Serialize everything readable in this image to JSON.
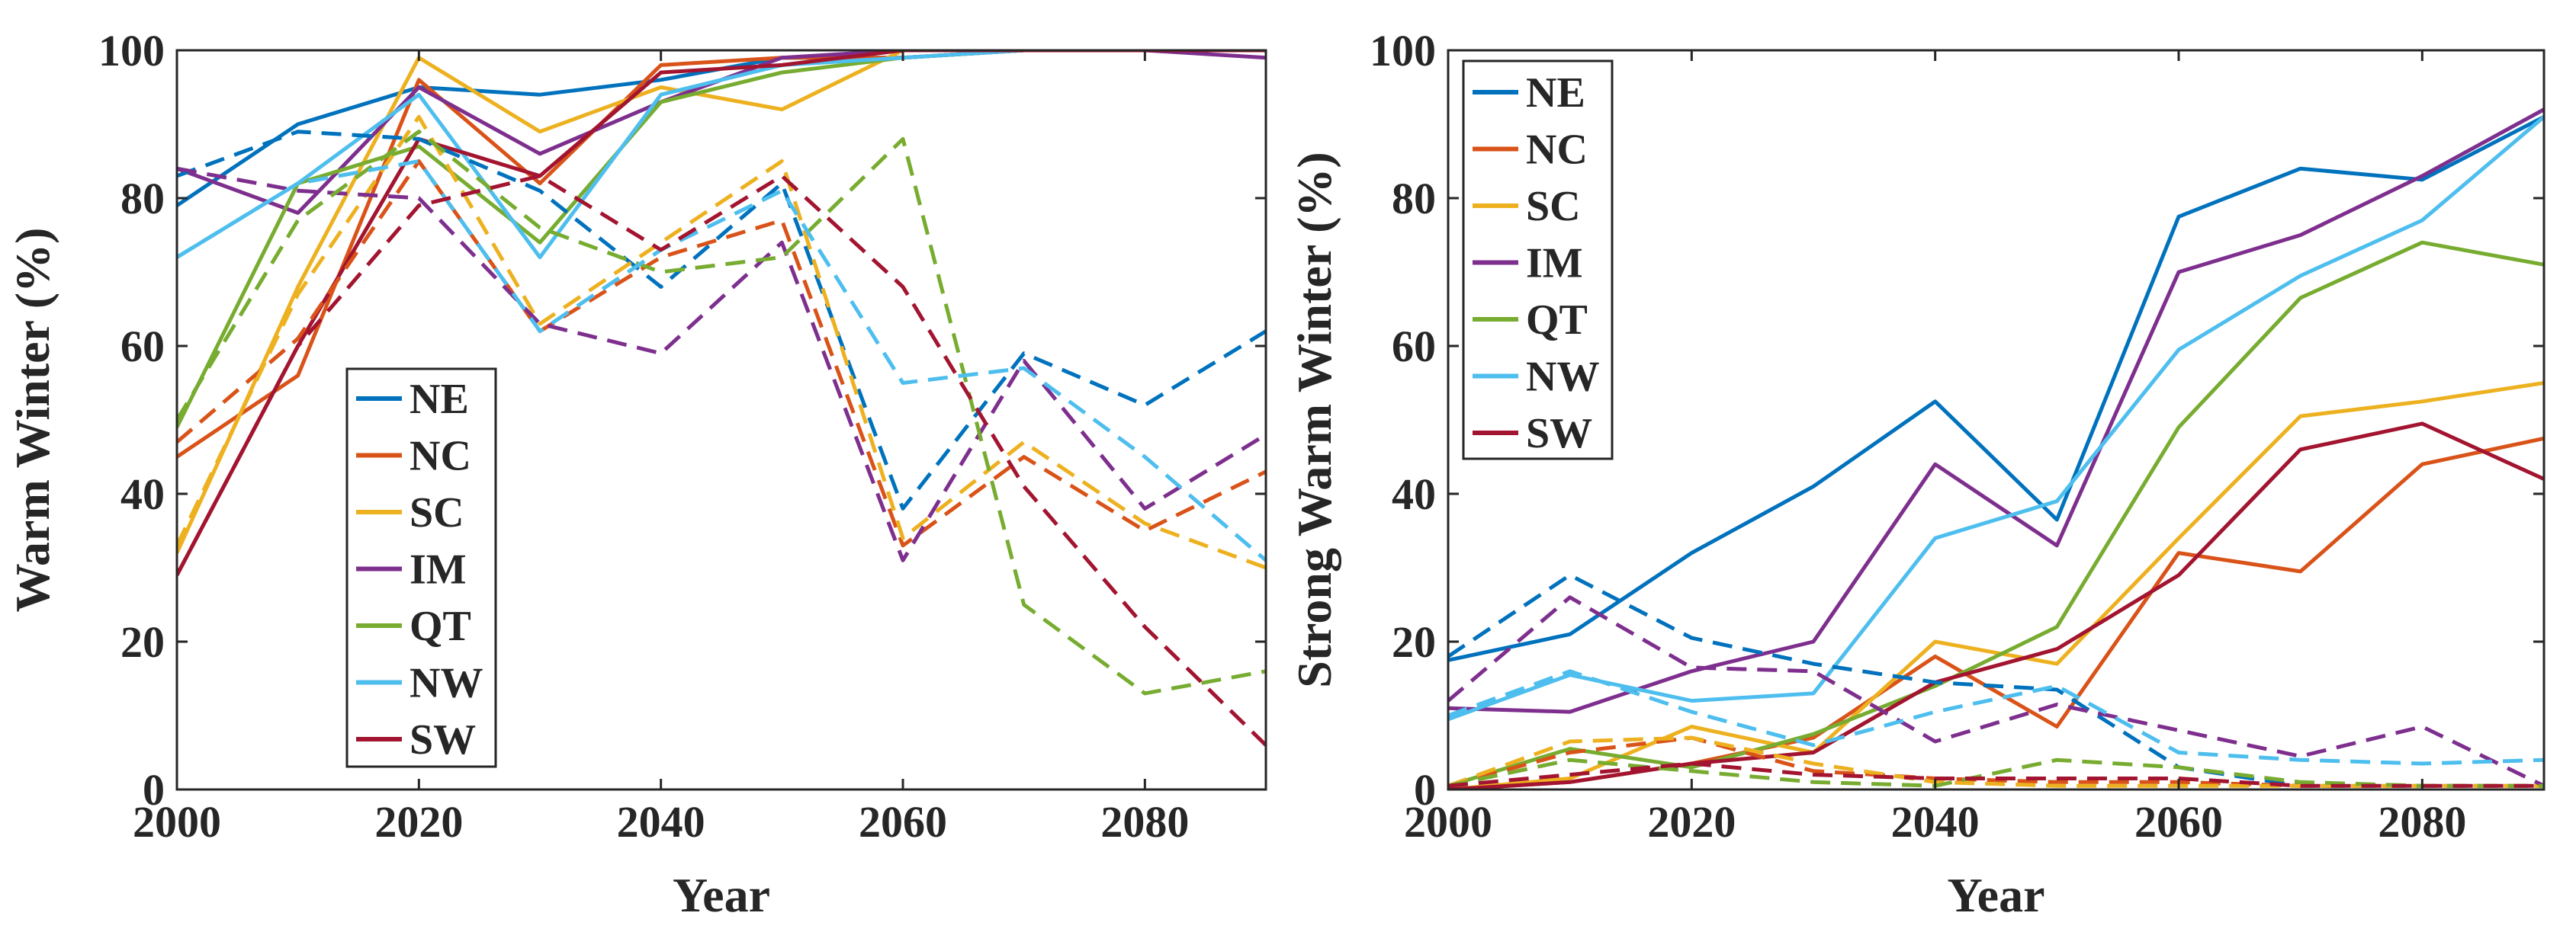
{
  "chart_data": [
    {
      "type": "line",
      "title": "",
      "xlabel": "Year",
      "ylabel": "Warm Winter (%)",
      "xlim": [
        2000,
        2090
      ],
      "ylim": [
        0,
        100
      ],
      "xticks": [
        "2000",
        "2020",
        "2040",
        "2060",
        "2080"
      ],
      "yticks": [
        "0",
        "20",
        "40",
        "60",
        "80",
        "100"
      ],
      "legend_position": "lower-left",
      "legend": [
        "NE",
        "NC",
        "SC",
        "IM",
        "QT",
        "NW",
        "SW"
      ],
      "x": [
        2000,
        2010,
        2020,
        2030,
        2040,
        2050,
        2060,
        2070,
        2080,
        2090
      ],
      "series": [
        {
          "name": "NE",
          "color": "#0072BD",
          "style": "solid",
          "values": [
            79,
            90,
            95,
            94,
            96,
            99,
            99,
            100,
            100,
            100
          ]
        },
        {
          "name": "NC",
          "color": "#D95319",
          "style": "solid",
          "values": [
            45,
            56,
            96,
            82,
            98,
            99,
            99,
            100,
            100,
            100
          ]
        },
        {
          "name": "SC",
          "color": "#EDB120",
          "style": "solid",
          "values": [
            32,
            68,
            99,
            89,
            95,
            92,
            100,
            100,
            100,
            100
          ]
        },
        {
          "name": "IM",
          "color": "#7E2F8E",
          "style": "solid",
          "values": [
            84,
            78,
            95,
            86,
            93,
            99,
            100,
            100,
            100,
            99
          ]
        },
        {
          "name": "QT",
          "color": "#77AC30",
          "style": "solid",
          "values": [
            49,
            82,
            87,
            74,
            93,
            97,
            99,
            100,
            100,
            100
          ]
        },
        {
          "name": "NW",
          "color": "#4DBEEE",
          "style": "solid",
          "values": [
            72,
            82,
            94,
            72,
            94,
            98,
            99,
            100,
            100,
            100
          ]
        },
        {
          "name": "SW",
          "color": "#A2142F",
          "style": "solid",
          "values": [
            29,
            60,
            88,
            83,
            97,
            98,
            100,
            100,
            100,
            100
          ]
        },
        {
          "name": "NE (dashed)",
          "color": "#0072BD",
          "style": "dashed",
          "values": [
            83,
            89,
            88,
            81,
            68,
            82,
            38,
            59,
            52,
            62
          ]
        },
        {
          "name": "NC (dashed)",
          "color": "#D95319",
          "style": "dashed",
          "values": [
            47,
            61,
            85,
            62,
            72,
            77,
            33,
            45,
            35,
            43
          ]
        },
        {
          "name": "SC (dashed)",
          "color": "#EDB120",
          "style": "dashed",
          "values": [
            33,
            67,
            91,
            63,
            74,
            85,
            34,
            47,
            36,
            30
          ]
        },
        {
          "name": "IM (dashed)",
          "color": "#7E2F8E",
          "style": "dashed",
          "values": [
            84,
            81,
            80,
            63,
            59,
            74,
            31,
            58,
            38,
            48
          ]
        },
        {
          "name": "QT (dashed)",
          "color": "#77AC30",
          "style": "dashed",
          "values": [
            50,
            77,
            89,
            76,
            70,
            72,
            88,
            25,
            13,
            16
          ]
        },
        {
          "name": "NW (dashed)",
          "color": "#4DBEEE",
          "style": "dashed",
          "values": [
            72,
            82,
            85,
            62,
            73,
            81,
            55,
            57,
            45,
            31
          ]
        },
        {
          "name": "SW (dashed)",
          "color": "#A2142F",
          "style": "dashed",
          "values": [
            29,
            60,
            79,
            83,
            73,
            83,
            68,
            41,
            22,
            6
          ]
        }
      ]
    },
    {
      "type": "line",
      "title": "",
      "xlabel": "Year",
      "ylabel": "Strong Warm Winter (%)",
      "xlim": [
        2000,
        2090
      ],
      "ylim": [
        0,
        100
      ],
      "xticks": [
        "2000",
        "2020",
        "2040",
        "2060",
        "2080"
      ],
      "yticks": [
        "0",
        "20",
        "40",
        "60",
        "80",
        "100"
      ],
      "legend_position": "top-left",
      "legend": [
        "NE",
        "NC",
        "SC",
        "IM",
        "QT",
        "NW",
        "SW"
      ],
      "x": [
        2000,
        2010,
        2020,
        2030,
        2040,
        2050,
        2060,
        2070,
        2080,
        2090
      ],
      "series": [
        {
          "name": "NE",
          "color": "#0072BD",
          "style": "solid",
          "values": [
            17.5,
            21,
            32,
            41,
            52.5,
            36.5,
            77.5,
            84,
            82.5,
            91
          ]
        },
        {
          "name": "NC",
          "color": "#D95319",
          "style": "solid",
          "values": [
            0,
            1,
            3.5,
            7,
            18,
            8.5,
            32,
            29.5,
            44,
            47.5
          ]
        },
        {
          "name": "SC",
          "color": "#EDB120",
          "style": "solid",
          "values": [
            0,
            1.5,
            8.5,
            5,
            20,
            17,
            34,
            50.5,
            52.5,
            55
          ]
        },
        {
          "name": "IM",
          "color": "#7E2F8E",
          "style": "solid",
          "values": [
            11,
            10.5,
            16,
            20,
            44,
            33,
            70,
            75,
            83,
            92
          ]
        },
        {
          "name": "QT",
          "color": "#77AC30",
          "style": "solid",
          "values": [
            0.5,
            5.5,
            3,
            7.5,
            14,
            22,
            49,
            66.5,
            74,
            71
          ]
        },
        {
          "name": "NW",
          "color": "#4DBEEE",
          "style": "solid",
          "values": [
            9.5,
            15.5,
            12,
            13,
            34,
            39,
            59.5,
            69.5,
            77,
            91
          ]
        },
        {
          "name": "SW",
          "color": "#A2142F",
          "style": "solid",
          "values": [
            0,
            1,
            3.5,
            5,
            14.5,
            19,
            29,
            46,
            49.5,
            42
          ]
        },
        {
          "name": "NE (dashed)",
          "color": "#0072BD",
          "style": "dashed",
          "values": [
            18,
            29,
            20.5,
            17,
            14.5,
            13.5,
            3,
            0.5,
            0.5,
            0.5
          ]
        },
        {
          "name": "NC (dashed)",
          "color": "#D95319",
          "style": "dashed",
          "values": [
            0.5,
            5,
            7,
            2.5,
            1.5,
            1,
            1,
            0.5,
            0.5,
            0.5
          ]
        },
        {
          "name": "SC (dashed)",
          "color": "#EDB120",
          "style": "dashed",
          "values": [
            0.5,
            6.5,
            7,
            3.5,
            1,
            0.5,
            0.5,
            0.5,
            0.5,
            0.5
          ]
        },
        {
          "name": "IM (dashed)",
          "color": "#7E2F8E",
          "style": "dashed",
          "values": [
            12,
            26,
            16.5,
            16,
            6.5,
            11.5,
            8,
            4.5,
            8.5,
            0.5
          ]
        },
        {
          "name": "QT (dashed)",
          "color": "#77AC30",
          "style": "dashed",
          "values": [
            0.5,
            4,
            2.5,
            1,
            0.5,
            4,
            3,
            1,
            0.5,
            0.5
          ]
        },
        {
          "name": "NW (dashed)",
          "color": "#4DBEEE",
          "style": "dashed",
          "values": [
            10,
            16,
            10.5,
            6,
            10.5,
            14,
            5,
            4,
            3.5,
            4
          ]
        },
        {
          "name": "SW (dashed)",
          "color": "#A2142F",
          "style": "dashed",
          "values": [
            0.5,
            2,
            3.5,
            2,
            1.5,
            1.5,
            1.5,
            0.5,
            0.5,
            0.5
          ]
        }
      ]
    }
  ]
}
